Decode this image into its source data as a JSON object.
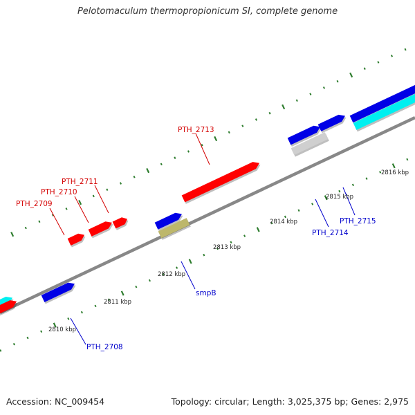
{
  "title": "Pelotomaculum thermopropionicum SI, complete genome",
  "footer": {
    "accession": "Accession: NC_009454",
    "stats": "Topology: circular; Length: 3,025,375 bp; Genes: 2,975"
  },
  "colors": {
    "backbone": "#888888",
    "tick": "#2e7d2e",
    "red": "#ff0000",
    "blue": "#0000e6",
    "cyan": "#00f0f0",
    "gray": "#cfcfcf",
    "olive": "#bdb76b",
    "label_red": "#d40000",
    "label_blue": "#0000cc"
  },
  "scale_labels": [
    "2810 kbp",
    "2811 kbp",
    "2812 kbp",
    "2813 kbp",
    "2814 kbp",
    "2815 kbp",
    "2816 kbp"
  ],
  "gene_labels": [
    {
      "text": "PTH_2713",
      "color": "red"
    },
    {
      "text": "PTH_2711",
      "color": "red"
    },
    {
      "text": "PTH_2710",
      "color": "red"
    },
    {
      "text": "PTH_2709",
      "color": "red"
    },
    {
      "text": "PTH_2714",
      "color": "blue"
    },
    {
      "text": "PTH_2715",
      "color": "blue"
    },
    {
      "text": "smpB",
      "color": "blue"
    },
    {
      "text": "PTH_2708",
      "color": "blue"
    }
  ],
  "features": [
    {
      "color": "cyan",
      "strand": "outer"
    },
    {
      "color": "red",
      "strand": "outer"
    },
    {
      "color": "blue",
      "strand": "outer"
    },
    {
      "color": "red",
      "strand": "outer"
    },
    {
      "color": "red",
      "strand": "outer"
    },
    {
      "color": "red",
      "strand": "outer"
    },
    {
      "color": "blue",
      "strand": "outer"
    },
    {
      "color": "olive",
      "strand": "inner"
    },
    {
      "color": "red",
      "strand": "outer"
    },
    {
      "color": "blue",
      "strand": "outer"
    },
    {
      "color": "gray",
      "strand": "inner"
    },
    {
      "color": "blue",
      "strand": "outer"
    },
    {
      "color": "blue",
      "strand": "outer"
    },
    {
      "color": "cyan",
      "strand": "inner"
    }
  ]
}
